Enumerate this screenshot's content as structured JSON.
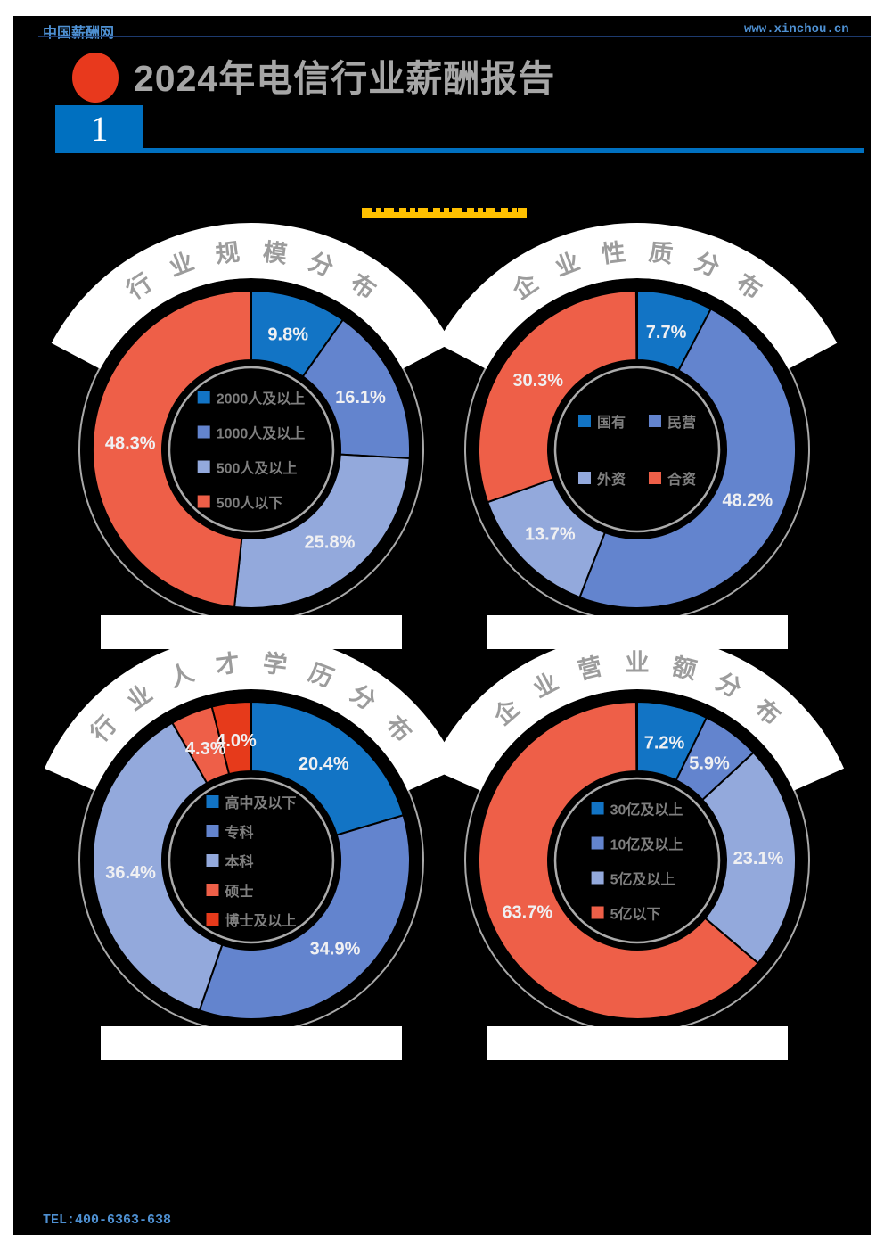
{
  "header": {
    "site_name": "中国薪酬网",
    "site_url": "www.xinchou.cn",
    "report_title": "2024年电信行业薪酬报告",
    "section_number": "1"
  },
  "footer": {
    "tel": "TEL:400-6363-638"
  },
  "colors": {
    "page_background": "#000000",
    "accent_blue": "#0070C0",
    "link_blue": "#4E90D2",
    "highlight_yellow": "#FFC000",
    "red_dot": "#E8391D",
    "title_gray": "#A6A6A6",
    "arc_title_gray": "#9C9C9C",
    "legend_text_gray": "#7F7F7F",
    "circle_gray": "#A9A9A9",
    "series_blue": "#1274C5",
    "series_periwinkle": "#6384CE",
    "series_light_blue": "#93A9DC",
    "series_salmon": "#EE5F48",
    "series_red": "#E63A1B"
  },
  "chart_data": [
    {
      "type": "pie",
      "subtype": "donut",
      "title": "行业规模分布",
      "legend_position": "center",
      "legend_layout": "column",
      "legend_gap": 15,
      "label_format": "percent",
      "series": [
        {
          "label": "2000人及以上",
          "value": 9.8,
          "color": "#1274C5"
        },
        {
          "label": "1000人及以上",
          "value": 16.1,
          "color": "#6384CE"
        },
        {
          "label": "500人及以上",
          "value": 25.8,
          "color": "#93A9DC"
        },
        {
          "label": "500人以下",
          "value": 48.3,
          "color": "#EE5F48"
        }
      ]
    },
    {
      "type": "pie",
      "subtype": "donut",
      "title": "企业性质分布",
      "legend_position": "center",
      "legend_layout": "grid2",
      "legend_gap": 40,
      "label_format": "percent",
      "series": [
        {
          "label": "国有",
          "value": 7.7,
          "color": "#1274C5"
        },
        {
          "label": "民营",
          "value": 48.2,
          "color": "#6384CE"
        },
        {
          "label": "外资",
          "value": 13.7,
          "color": "#93A9DC"
        },
        {
          "label": "合资",
          "value": 30.3,
          "color": "#EE5F48"
        }
      ]
    },
    {
      "type": "pie",
      "subtype": "donut",
      "title": "行业人才学历分布",
      "legend_position": "center",
      "legend_layout": "column",
      "legend_gap": 9,
      "label_format": "percent",
      "series": [
        {
          "label": "高中及以下",
          "value": 20.4,
          "color": "#1274C5"
        },
        {
          "label": "专科",
          "value": 34.9,
          "color": "#6384CE"
        },
        {
          "label": "本科",
          "value": 36.4,
          "color": "#93A9DC"
        },
        {
          "label": "硕士",
          "value": 4.3,
          "color": "#EE5F48"
        },
        {
          "label": "博士及以上",
          "value": 4.0,
          "color": "#E63A1B"
        }
      ]
    },
    {
      "type": "pie",
      "subtype": "donut",
      "title": "企业营业额分布",
      "legend_position": "center",
      "legend_layout": "column",
      "legend_gap": 15,
      "label_format": "percent",
      "series": [
        {
          "label": "30亿及以上",
          "value": 7.2,
          "color": "#1274C5"
        },
        {
          "label": "10亿及以上",
          "value": 5.9,
          "color": "#6384CE"
        },
        {
          "label": "5亿及以上",
          "value": 23.1,
          "color": "#93A9DC"
        },
        {
          "label": "5亿以下",
          "value": 63.7,
          "color": "#EE5F48"
        }
      ]
    }
  ]
}
